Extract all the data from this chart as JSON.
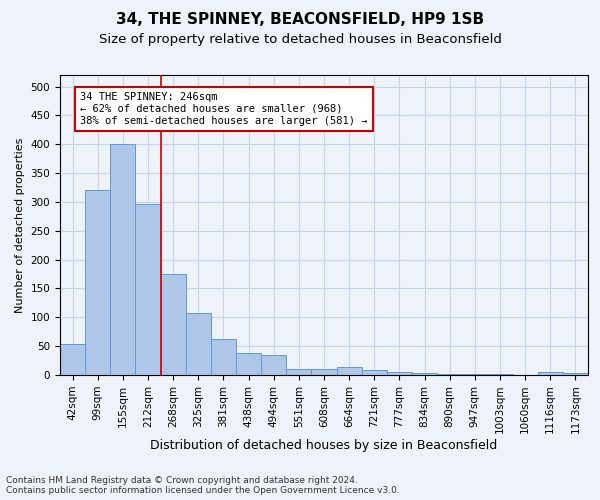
{
  "title1": "34, THE SPINNEY, BEACONSFIELD, HP9 1SB",
  "title2": "Size of property relative to detached houses in Beaconsfield",
  "xlabel": "Distribution of detached houses by size in Beaconsfield",
  "ylabel": "Number of detached properties",
  "footnote": "Contains HM Land Registry data © Crown copyright and database right 2024.\nContains public sector information licensed under the Open Government Licence v3.0.",
  "categories": [
    "42sqm",
    "99sqm",
    "155sqm",
    "212sqm",
    "268sqm",
    "325sqm",
    "381sqm",
    "438sqm",
    "494sqm",
    "551sqm",
    "608sqm",
    "664sqm",
    "721sqm",
    "777sqm",
    "834sqm",
    "890sqm",
    "947sqm",
    "1003sqm",
    "1060sqm",
    "1116sqm",
    "1173sqm"
  ],
  "values": [
    53,
    320,
    400,
    296,
    175,
    107,
    63,
    39,
    35,
    11,
    10,
    14,
    8,
    6,
    4,
    2,
    1,
    1,
    0,
    5,
    3
  ],
  "bar_color": "#aec6e8",
  "bar_edge_color": "#5b9bd5",
  "grid_color": "#c8d4e8",
  "background_color": "#eef2f9",
  "vline_x": 3.5,
  "vline_color": "#cc0000",
  "annotation_text": "34 THE SPINNEY: 246sqm\n← 62% of detached houses are smaller (968)\n38% of semi-detached houses are larger (581) →",
  "annotation_box_color": "#ffffff",
  "annotation_box_edge_color": "#cc0000",
  "ylim": [
    0,
    520
  ],
  "yticks": [
    0,
    50,
    100,
    150,
    200,
    250,
    300,
    350,
    400,
    450,
    500
  ],
  "title1_fontsize": 11,
  "title2_fontsize": 9.5,
  "xlabel_fontsize": 9,
  "ylabel_fontsize": 8,
  "tick_fontsize": 7.5,
  "annot_fontsize": 7.5,
  "footnote_fontsize": 6.5
}
